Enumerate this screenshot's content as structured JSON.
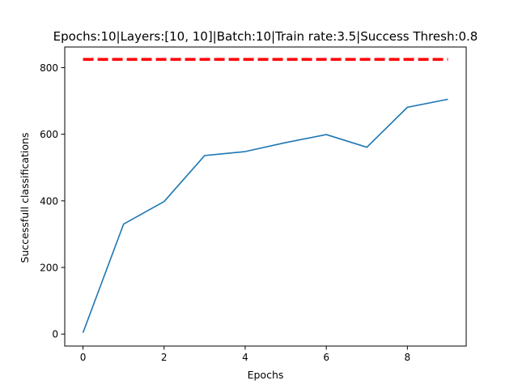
{
  "chart_data": {
    "type": "line",
    "title": "Epochs:10|Layers:[10, 10]|Batch:10|Train rate:3.5|Success Thresh:0.8",
    "xlabel": "Epochs",
    "ylabel": "Successfull classifications",
    "xlim": [
      -0.45,
      9.45
    ],
    "ylim": [
      -36,
      862
    ],
    "xticks": [
      0,
      2,
      4,
      6,
      8
    ],
    "yticks": [
      0,
      200,
      400,
      600,
      800
    ],
    "grid": false,
    "series": [
      {
        "style": "solid",
        "color": "#1f77b4",
        "x": [
          0,
          1,
          2,
          3,
          4,
          5,
          6,
          7,
          8,
          9
        ],
        "y": [
          4,
          330,
          398,
          536,
          548,
          575,
          599,
          561,
          681,
          705
        ]
      },
      {
        "style": "dashed",
        "color": "#ff0000",
        "x": [
          0,
          9
        ],
        "y": [
          825,
          825
        ]
      }
    ]
  }
}
